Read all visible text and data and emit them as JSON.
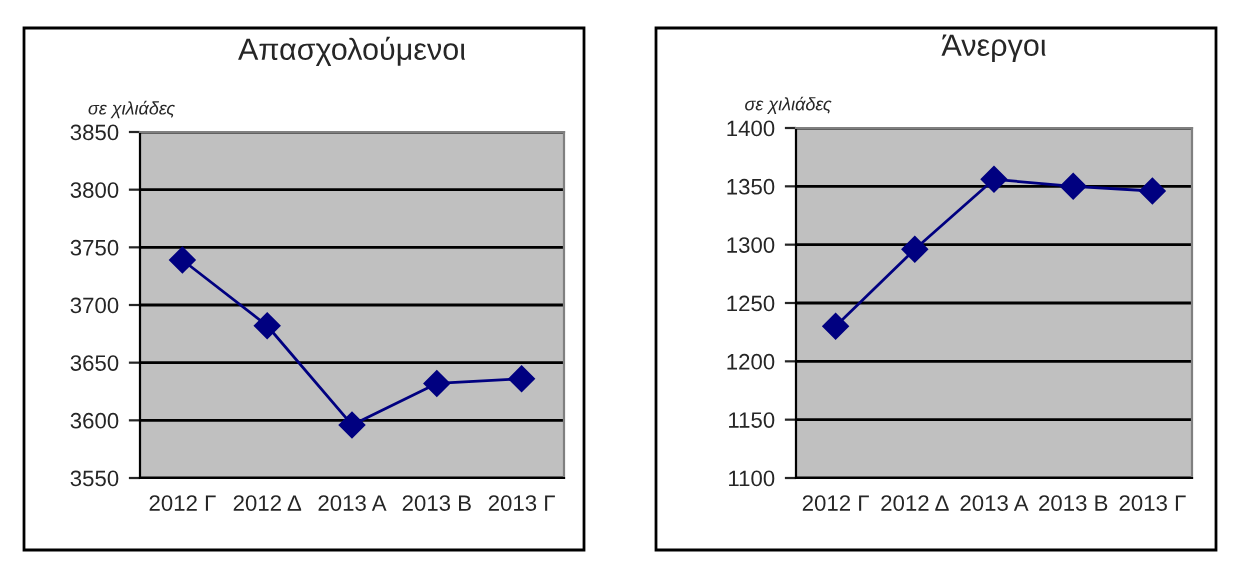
{
  "chart_data": [
    {
      "type": "line",
      "title": "Απασχολούμενοι",
      "ylabel": "σε χιλιάδες",
      "categories": [
        "2012 Γ",
        "2012 Δ",
        "2013 Α",
        "2013 Β",
        "2013 Γ"
      ],
      "series": [
        {
          "color": "#000080",
          "values": [
            3739,
            3682,
            3596,
            3632,
            3636
          ]
        }
      ],
      "ylim": [
        3550,
        3850
      ],
      "yticks": [
        3550,
        3600,
        3650,
        3700,
        3750,
        3800,
        3850
      ],
      "grid": "y",
      "marker": "diamond",
      "line_style": "solid",
      "legend": false
    },
    {
      "type": "line",
      "title": "Άνεργοι",
      "ylabel": "σε χιλιάδες",
      "categories": [
        "2012 Γ",
        "2012 Δ",
        "2013 Α",
        "2013 Β",
        "2013 Γ"
      ],
      "series": [
        {
          "color": "#000080",
          "values": [
            1230,
            1296,
            1356,
            1350,
            1346
          ]
        }
      ],
      "ylim": [
        1100,
        1400
      ],
      "yticks": [
        1100,
        1150,
        1200,
        1250,
        1300,
        1350,
        1400
      ],
      "grid": "y",
      "marker": "diamond",
      "line_style": "solid",
      "legend": false
    }
  ]
}
